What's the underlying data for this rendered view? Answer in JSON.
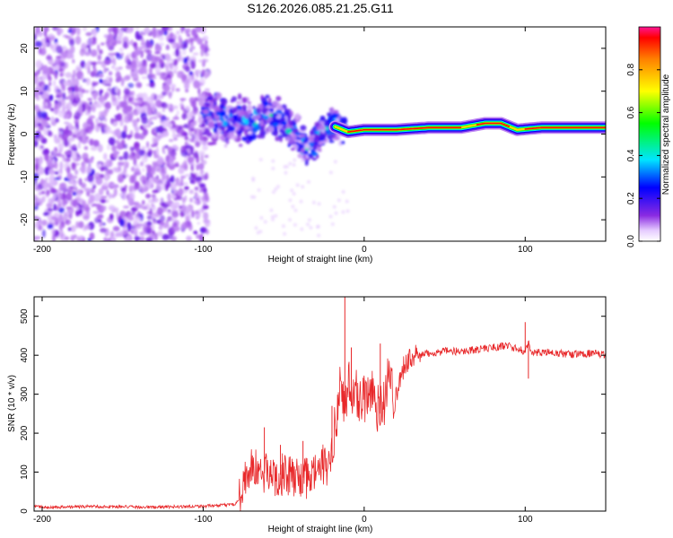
{
  "chart_data": [
    {
      "type": "heatmap",
      "title": "S126.2026.085.21.25.G11",
      "xlabel": "Height of straight line (km)",
      "ylabel": "Frequency (Hz)",
      "xlim": [
        -205,
        150
      ],
      "ylim": [
        -25,
        25
      ],
      "xticks": [
        -200,
        -100,
        0,
        100
      ],
      "yticks": [
        -20,
        -10,
        0,
        10,
        20
      ],
      "colorbar": {
        "label": "Normalized spectral amplitude",
        "range": [
          0,
          1
        ],
        "ticks": [
          "0.0",
          "0.2",
          "0.4",
          "0.6",
          "0.8"
        ],
        "tick_values": [
          0.0,
          0.2,
          0.4,
          0.6,
          0.8
        ]
      },
      "ridge": [
        {
          "x": -100,
          "y": 5
        },
        {
          "x": -90,
          "y": 3
        },
        {
          "x": -80,
          "y": 4
        },
        {
          "x": -70,
          "y": 2
        },
        {
          "x": -60,
          "y": 5
        },
        {
          "x": -50,
          "y": 3
        },
        {
          "x": -40,
          "y": -1
        },
        {
          "x": -35,
          "y": -3
        },
        {
          "x": -30,
          "y": -1
        },
        {
          "x": -25,
          "y": 1
        },
        {
          "x": -20,
          "y": 2
        },
        {
          "x": -10,
          "y": 0.5
        },
        {
          "x": 0,
          "y": 1
        },
        {
          "x": 20,
          "y": 1
        },
        {
          "x": 40,
          "y": 1.5
        },
        {
          "x": 60,
          "y": 1.5
        },
        {
          "x": 75,
          "y": 2.5
        },
        {
          "x": 85,
          "y": 2.5
        },
        {
          "x": 95,
          "y": 1
        },
        {
          "x": 110,
          "y": 1.5
        },
        {
          "x": 150,
          "y": 1.5
        }
      ]
    },
    {
      "type": "line",
      "xlabel": "Height of straight line (km)",
      "ylabel": "SNR (10 * v/v)",
      "xlim": [
        -205,
        150
      ],
      "ylim": [
        0,
        550
      ],
      "xticks": [
        -200,
        -100,
        0,
        100
      ],
      "yticks": [
        0,
        100,
        200,
        300,
        400,
        500
      ],
      "series": [
        {
          "name": "SNR",
          "color": "#e8282a",
          "x": [
            -205,
            -190,
            -170,
            -150,
            -130,
            -110,
            -90,
            -80,
            -78,
            -75,
            -70,
            -65,
            -60,
            -55,
            -50,
            -45,
            -40,
            -35,
            -30,
            -25,
            -22,
            -20,
            -18,
            -15,
            -12,
            -10,
            -8,
            -5,
            0,
            5,
            10,
            15,
            20,
            25,
            30,
            40,
            50,
            60,
            70,
            80,
            90,
            95,
            100,
            102,
            105,
            110,
            120,
            130,
            140,
            150
          ],
          "values": [
            12,
            10,
            12,
            11,
            10,
            12,
            14,
            18,
            30,
            80,
            110,
            100,
            95,
            90,
            95,
            85,
            90,
            80,
            100,
            120,
            110,
            140,
            230,
            330,
            250,
            350,
            270,
            300,
            290,
            320,
            250,
            330,
            300,
            380,
            395,
            405,
            410,
            410,
            415,
            420,
            425,
            415,
            410,
            430,
            405,
            408,
            405,
            402,
            405,
            400
          ],
          "spikes": [
            {
              "x": -62,
              "value": 215
            },
            {
              "x": -52,
              "value": 170
            },
            {
              "x": -38,
              "value": 180
            },
            {
              "x": -20,
              "value": 270
            },
            {
              "x": -12,
              "value": 550
            },
            {
              "x": -8,
              "value": 420
            },
            {
              "x": 10,
              "value": 430
            },
            {
              "x": 100,
              "value": 485
            },
            {
              "x": 102,
              "value": 340
            }
          ]
        }
      ]
    }
  ]
}
